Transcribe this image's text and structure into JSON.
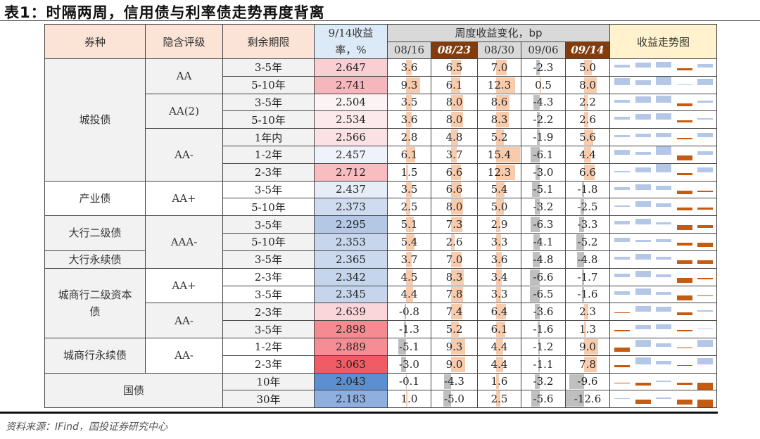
{
  "title": "表1：时隔两周，信用债与利率债走势再度背离",
  "source": "资料来源：IFind，国投证券研究中心",
  "headers": {
    "bond_type": "券种",
    "rating": "隐含评级",
    "tenor": "剩余期限",
    "yield": "9/14收益率，%",
    "weekly_change": "周度收益变化，bp",
    "weeks": [
      "08/16",
      "08/23",
      "08/30",
      "09/06",
      "09/14"
    ],
    "highlighted_weeks": [
      "08/23",
      "09/14"
    ],
    "trend": "收益走势图"
  },
  "colors": {
    "header_peach": "#fbe3d6",
    "header_blue": "#dce9f6",
    "header_grey": "#d9d9d9",
    "header_brown": "#843c0c",
    "header_yellow": "#fff2cc",
    "bar_positive": "#f8cbad",
    "bar_negative": "#bfbfbf",
    "trend_up": "#b4c7e7",
    "trend_down": "#c55a11"
  },
  "groups": [
    {
      "type": "城投债",
      "shade": true,
      "ratings": [
        {
          "rating": "AA",
          "rows": [
            {
              "tenor": "3-5年",
              "yield": "2.647",
              "changes": [
                3.6,
                6.5,
                7.0,
                -2.3,
                5.0
              ]
            },
            {
              "tenor": "5-10年",
              "yield": "2.741",
              "changes": [
                9.3,
                6.1,
                12.3,
                0.5,
                8.0
              ]
            }
          ]
        },
        {
          "rating": "AA(2)",
          "rows": [
            {
              "tenor": "3-5年",
              "yield": "2.504",
              "changes": [
                3.5,
                8.0,
                8.6,
                -4.3,
                2.2
              ]
            },
            {
              "tenor": "5-10年",
              "yield": "2.534",
              "changes": [
                3.6,
                8.0,
                8.3,
                -2.2,
                2.6
              ]
            }
          ]
        },
        {
          "rating": "AA-",
          "rows": [
            {
              "tenor": "1年内",
              "yield": "2.566",
              "changes": [
                2.8,
                4.8,
                5.2,
                -1.9,
                5.6
              ]
            },
            {
              "tenor": "1-2年",
              "yield": "2.457",
              "changes": [
                6.1,
                3.7,
                15.4,
                -6.1,
                4.4
              ]
            },
            {
              "tenor": "2-3年",
              "yield": "2.712",
              "changes": [
                1.5,
                6.6,
                12.3,
                -3.0,
                6.6
              ]
            }
          ]
        }
      ]
    },
    {
      "type": "产业债",
      "shade": false,
      "ratings": [
        {
          "rating": "AA+",
          "rows": [
            {
              "tenor": "3-5年",
              "yield": "2.437",
              "changes": [
                3.5,
                6.6,
                5.4,
                -5.1,
                -1.8
              ]
            },
            {
              "tenor": "5-10年",
              "yield": "2.373",
              "changes": [
                2.5,
                8.0,
                5.0,
                -3.2,
                -2.5
              ]
            }
          ]
        }
      ]
    },
    {
      "type": "大行二级债",
      "shade": true,
      "ratings": [
        {
          "rating": "AAA-",
          "rows": [
            {
              "tenor": "3-5年",
              "yield": "2.295",
              "changes": [
                5.1,
                7.3,
                2.9,
                -6.3,
                -3.3
              ]
            },
            {
              "tenor": "5-10年",
              "yield": "2.353",
              "changes": [
                5.4,
                2.6,
                3.3,
                -4.1,
                -5.2
              ]
            }
          ]
        }
      ]
    },
    {
      "type": "大行永续债",
      "shade": true,
      "ratings": [
        {
          "rating": "AAA-",
          "rows": [
            {
              "tenor": "3-5年",
              "yield": "2.365",
              "changes": [
                3.7,
                7.0,
                3.6,
                -4.8,
                -4.8
              ]
            }
          ]
        }
      ]
    },
    {
      "type": "城商行二级资本债",
      "shade": true,
      "ratings": [
        {
          "rating": "AA+",
          "rows": [
            {
              "tenor": "2-3年",
              "yield": "2.342",
              "changes": [
                4.5,
                8.3,
                3.4,
                -6.6,
                -1.7
              ]
            },
            {
              "tenor": "3-5年",
              "yield": "2.345",
              "changes": [
                4.4,
                7.8,
                3.3,
                -6.5,
                -1.6
              ]
            }
          ]
        },
        {
          "rating": "AA-",
          "rows": [
            {
              "tenor": "2-3年",
              "yield": "2.639",
              "changes": [
                -0.8,
                7.4,
                6.4,
                -3.6,
                2.3
              ]
            },
            {
              "tenor": "3-5年",
              "yield": "2.898",
              "changes": [
                -1.3,
                5.2,
                6.1,
                -1.6,
                1.3
              ]
            }
          ]
        }
      ]
    },
    {
      "type": "城商行永续债",
      "shade": true,
      "ratings": [
        {
          "rating": "AA-",
          "rows": [
            {
              "tenor": "1-2年",
              "yield": "2.889",
              "changes": [
                -5.1,
                9.3,
                4.4,
                -1.2,
                9.0
              ]
            },
            {
              "tenor": "2-3年",
              "yield": "3.063",
              "changes": [
                -3.0,
                9.0,
                4.4,
                -1.1,
                7.8
              ]
            }
          ]
        }
      ]
    },
    {
      "type": "国债",
      "shade": true,
      "ratings": [
        {
          "rating": "",
          "rows": [
            {
              "tenor": "10年",
              "yield": "2.043",
              "changes": [
                -0.1,
                -4.3,
                1.6,
                -3.2,
                -9.6
              ]
            },
            {
              "tenor": "30年",
              "yield": "2.183",
              "changes": [
                1.0,
                -5.0,
                2.5,
                -5.6,
                -12.6
              ]
            }
          ]
        }
      ]
    }
  ],
  "yield_colors": {
    "2.647": "#f9cfd3",
    "2.741": "#f7b6bb",
    "2.504": "#fcf3f5",
    "2.534": "#fbe9ec",
    "2.566": "#fae1e4",
    "2.457": "#eef2fa",
    "2.712": "#f8bcc1",
    "2.437": "#e6edf7",
    "2.373": "#cfdcef",
    "2.295": "#b4c8e6",
    "2.353": "#c7d6ed",
    "2.365": "#cad9ee",
    "2.342": "#c5d5ec",
    "2.345": "#c6d5ec",
    "2.639": "#fad5d9",
    "2.898": "#f58b91",
    "2.889": "#f58e94",
    "3.063": "#f05c63",
    "2.043": "#5b8fd0",
    "2.183": "#8eafe0"
  }
}
